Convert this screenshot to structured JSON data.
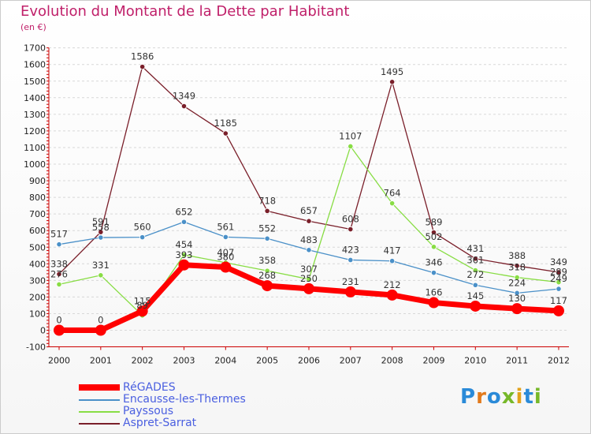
{
  "header": {
    "title": "Evolution du Montant de la Dette par Habitant",
    "subtitle": "(en €)"
  },
  "logo": {
    "text": "Proxiti",
    "letter_colors": [
      "#2a8ad8",
      "#e27a1c",
      "#2a8ad8",
      "#77b82a",
      "#e2a21c",
      "#2a8ad8",
      "#77b82a"
    ]
  },
  "chart_data": {
    "type": "line",
    "title": "Evolution du Montant de la Dette par Habitant",
    "subtitle": "(en €)",
    "xlabel": "",
    "ylabel": "",
    "x": [
      "2000",
      "2001",
      "2002",
      "2003",
      "2004",
      "2005",
      "2006",
      "2007",
      "2008",
      "2009",
      "2010",
      "2011",
      "2012"
    ],
    "ylim": [
      -100,
      1700
    ],
    "yticks": [
      -100,
      0,
      100,
      200,
      300,
      400,
      500,
      600,
      700,
      800,
      900,
      1000,
      1100,
      1200,
      1300,
      1400,
      1500,
      1600,
      1700
    ],
    "grid": "horizontal dashed",
    "legend_position": "bottom-left",
    "series": [
      {
        "name": "RéGADES",
        "color": "#ff0000",
        "emphasis": true,
        "values": [
          0,
          0,
          115,
          393,
          380,
          268,
          250,
          231,
          212,
          166,
          145,
          130,
          117
        ],
        "labels": [
          "0",
          "0",
          "115",
          "393",
          "380",
          "268",
          "250",
          "231",
          "212",
          "166",
          "145",
          "130",
          "117"
        ]
      },
      {
        "name": "Encausse-les-Thermes",
        "color": "#4a90c8",
        "emphasis": false,
        "values": [
          517,
          558,
          560,
          652,
          561,
          552,
          483,
          423,
          417,
          346,
          272,
          224,
          249
        ],
        "labels": [
          "517",
          "558",
          "560",
          "652",
          "561",
          "552",
          "483",
          "423",
          "417",
          "346",
          "272",
          "224",
          "249"
        ]
      },
      {
        "name": "Payssous",
        "color": "#88dd44",
        "emphasis": false,
        "values": [
          276,
          331,
          89,
          454,
          407,
          358,
          307,
          1107,
          764,
          502,
          361,
          318,
          289
        ],
        "labels": [
          "276",
          "331",
          "89",
          "454",
          "407",
          "358",
          "307",
          "1107",
          "764",
          "502",
          "361",
          "318",
          "289"
        ]
      },
      {
        "name": "Aspret-Sarrat",
        "color": "#7a1f2a",
        "emphasis": false,
        "values": [
          338,
          591,
          1586,
          1349,
          1185,
          718,
          657,
          608,
          1495,
          589,
          431,
          388,
          349
        ],
        "labels": [
          "338",
          "591",
          "1586",
          "1349",
          "1185",
          "718",
          "657",
          "608",
          "1495",
          "589",
          "431",
          "388",
          "349"
        ]
      }
    ]
  }
}
